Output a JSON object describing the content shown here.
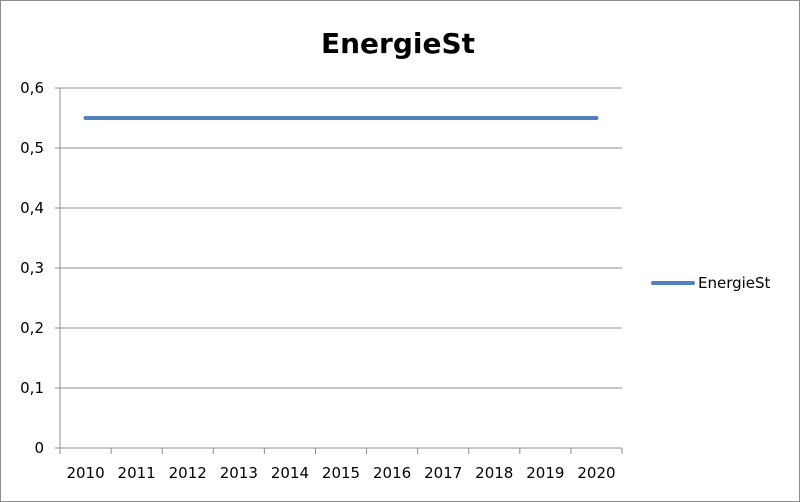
{
  "chart_data": {
    "type": "line",
    "title": "EnergieSt",
    "xlabel": "",
    "ylabel": "",
    "categories": [
      "2010",
      "2011",
      "2012",
      "2013",
      "2014",
      "2015",
      "2016",
      "2017",
      "2018",
      "2019",
      "2020"
    ],
    "series": [
      {
        "name": "EnergieSt",
        "color": "#4f81bd",
        "values": [
          0.55,
          0.55,
          0.55,
          0.55,
          0.55,
          0.55,
          0.55,
          0.55,
          0.55,
          0.55,
          0.55
        ]
      }
    ],
    "ylim": [
      0,
      0.6
    ],
    "yticks": [
      "0",
      "0,1",
      "0,2",
      "0,3",
      "0,4",
      "0,5",
      "0,6"
    ],
    "grid": true,
    "legend_position": "right"
  }
}
